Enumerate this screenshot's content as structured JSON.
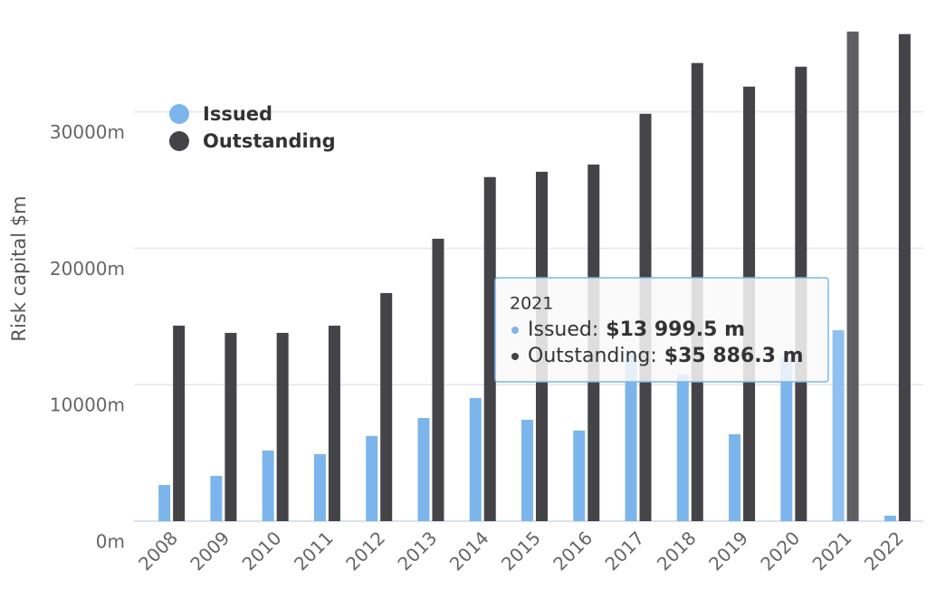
{
  "chart_data": {
    "type": "bar",
    "y_axis_title": "Risk capital $m",
    "categories": [
      "2008",
      "2009",
      "2010",
      "2011",
      "2012",
      "2013",
      "2014",
      "2015",
      "2016",
      "2017",
      "2018",
      "2019",
      "2020",
      "2021",
      "2022"
    ],
    "series": [
      {
        "name": "Issued",
        "color": "#7cb5ec",
        "values": [
          2650,
          3320,
          5180,
          4910,
          6240,
          7560,
          9020,
          7430,
          6640,
          12300,
          10750,
          6370,
          12000,
          13999.5,
          400
        ]
      },
      {
        "name": "Outstanding",
        "color": "#434348",
        "values": [
          14330,
          13800,
          13800,
          14330,
          16720,
          20700,
          25220,
          25610,
          26140,
          29860,
          33580,
          31850,
          33310,
          35886.3,
          35700
        ]
      }
    ],
    "ylim": [
      0,
      38000
    ],
    "yticks": [
      {
        "value": 0,
        "label": "0m"
      },
      {
        "value": 10000,
        "label": "10000m"
      },
      {
        "value": 20000,
        "label": "20000m"
      },
      {
        "value": 30000,
        "label": "30000m"
      }
    ],
    "grid": true,
    "legend": "top-left",
    "tooltip": {
      "title": "2021",
      "rows": [
        {
          "label": "Issued:",
          "value": "$13 999.5 m"
        },
        {
          "label": "Outstanding:",
          "value": "$35 886.3 m"
        }
      ]
    }
  }
}
